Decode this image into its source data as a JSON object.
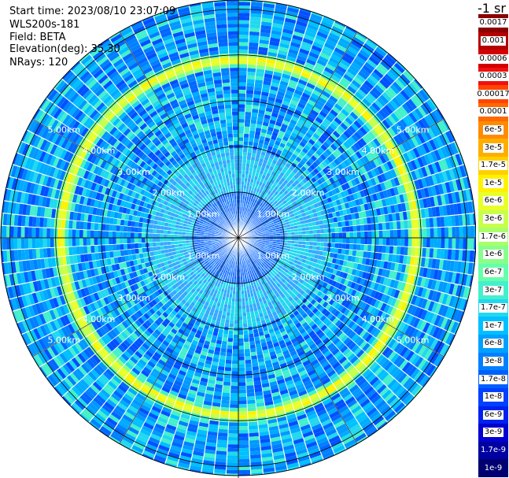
{
  "header": {
    "start_time": "Start time: 2023/08/10 23:07:09",
    "instrument": "WLS200s-181",
    "field": "Field: BETA",
    "elevation": "Elevation(deg): 35.30",
    "nrays": "NRays: 120"
  },
  "colorbar": {
    "unit": "-1 sr",
    "labels": [
      "0.0017",
      "0.001",
      "0.0006",
      "0.0003",
      "0.00017",
      "0.0001",
      "6e-5",
      "3e-5",
      "1.7e-5",
      "1e-5",
      "6e-6",
      "3e-6",
      "1.7e-6",
      "1e-6",
      "6e-7",
      "3e-7",
      "1.7e-7",
      "1e-7",
      "6e-8",
      "3e-8",
      "1.7e-8",
      "1e-8",
      "6e-9",
      "3e-9",
      "1.7e-9",
      "1e-9"
    ],
    "colors": [
      "#8b0000",
      "#b30000",
      "#d40000",
      "#f01010",
      "#ff4500",
      "#ff6a00",
      "#ff8c00",
      "#ffae00",
      "#ffd000",
      "#fff200",
      "#e8ff2a",
      "#c8ff4a",
      "#a8ff6a",
      "#88ff8a",
      "#66ffaa",
      "#44f0cc",
      "#22d8ee",
      "#00c0ff",
      "#00a0ff",
      "#0080ff",
      "#0060ff",
      "#0040ff",
      "#0020f0",
      "#0000d0",
      "#0000a0",
      "#000070"
    ]
  },
  "chart_data": {
    "type": "ppi",
    "field": "BETA",
    "elevation_deg": 35.3,
    "n_rays": 120,
    "range_km": [
      0,
      5.2
    ],
    "range_ring_labels": [
      "1.00km",
      "2.00km",
      "3.00km",
      "4.00km",
      "5.00km"
    ],
    "range_rings_km": [
      1,
      2,
      3,
      4,
      5
    ],
    "high_backscatter_ring_km": [
      3.9,
      3.95
    ],
    "color_scale": "log"
  }
}
